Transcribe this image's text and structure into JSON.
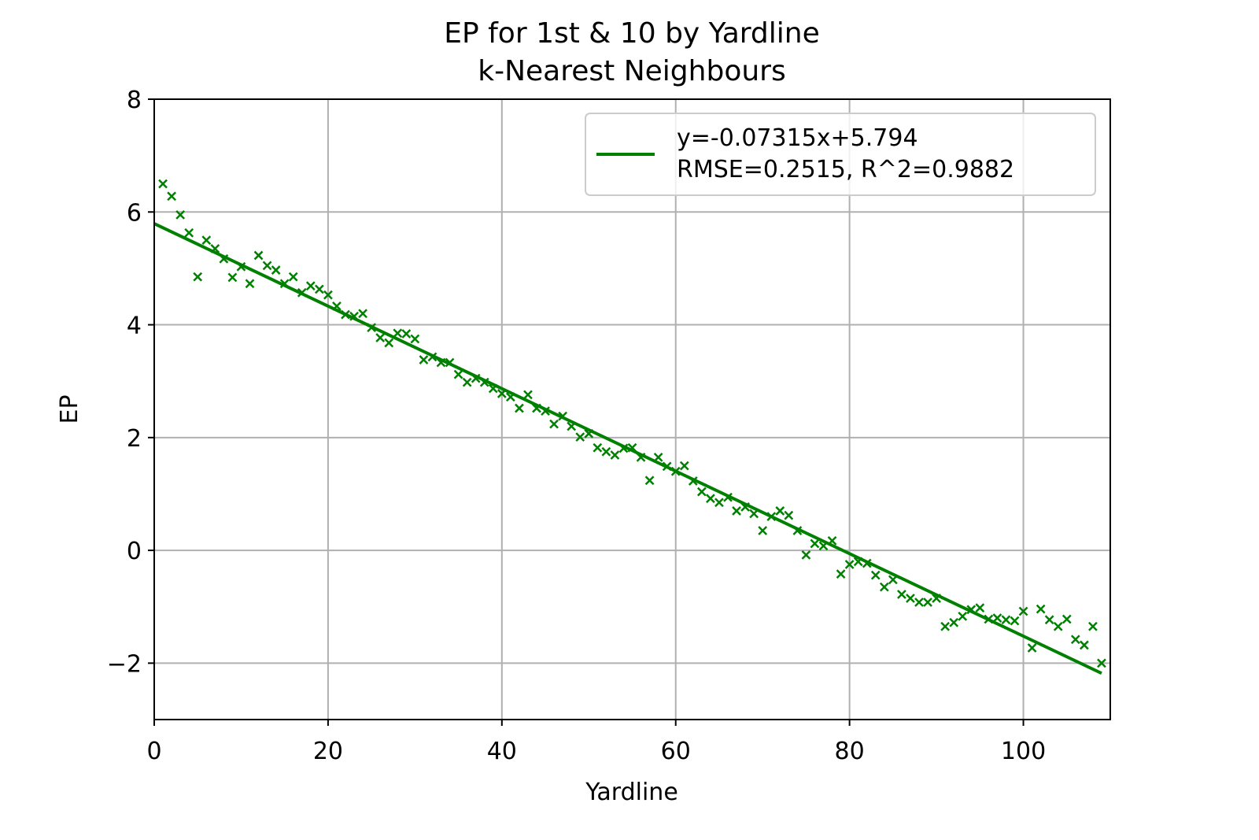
{
  "chart_data": {
    "type": "scatter",
    "title": "EP for 1st & 10 by Yardline",
    "subtitle": "k-Nearest Neighbours",
    "xlabel": "Yardline",
    "ylabel": "EP",
    "xlim": [
      0,
      110
    ],
    "ylim": [
      -3,
      8
    ],
    "xticks": [
      0,
      20,
      40,
      60,
      80,
      100
    ],
    "yticks": [
      -2,
      0,
      2,
      4,
      6,
      8
    ],
    "ytick_labels": [
      "−2",
      "0",
      "2",
      "4",
      "6",
      "8"
    ],
    "grid": true,
    "legend_position": "top-right",
    "color": "#008000",
    "marker": "x",
    "fit": {
      "slope": -0.07315,
      "intercept": 5.794,
      "legend_line1": "y=-0.07315x+5.794",
      "legend_line2": "RMSE=0.2515, R^2=0.9882"
    },
    "points": {
      "x": [
        1,
        2,
        3,
        4,
        5,
        6,
        7,
        8,
        9,
        10,
        11,
        12,
        13,
        14,
        15,
        16,
        17,
        18,
        19,
        20,
        21,
        22,
        23,
        24,
        25,
        26,
        27,
        28,
        29,
        30,
        31,
        32,
        33,
        34,
        35,
        36,
        37,
        38,
        39,
        40,
        41,
        42,
        43,
        44,
        45,
        46,
        47,
        48,
        49,
        50,
        51,
        52,
        53,
        54,
        55,
        56,
        57,
        58,
        59,
        60,
        61,
        62,
        63,
        64,
        65,
        66,
        67,
        68,
        69,
        70,
        71,
        72,
        73,
        74,
        75,
        76,
        77,
        78,
        79,
        80,
        81,
        82,
        83,
        84,
        85,
        86,
        87,
        88,
        89,
        90,
        91,
        92,
        93,
        94,
        95,
        96,
        97,
        98,
        99,
        100,
        101,
        102,
        103,
        104,
        105,
        106,
        107,
        108,
        109
      ],
      "y": [
        6.5,
        6.28,
        5.95,
        5.63,
        4.85,
        5.5,
        5.35,
        5.17,
        4.84,
        5.03,
        4.73,
        5.23,
        5.05,
        4.97,
        4.73,
        4.85,
        4.57,
        4.69,
        4.63,
        4.53,
        4.33,
        4.18,
        4.15,
        4.2,
        3.95,
        3.77,
        3.68,
        3.85,
        3.84,
        3.75,
        3.38,
        3.43,
        3.33,
        3.33,
        3.12,
        2.98,
        3.05,
        2.98,
        2.87,
        2.78,
        2.72,
        2.52,
        2.76,
        2.52,
        2.47,
        2.24,
        2.38,
        2.2,
        2.01,
        2.07,
        1.82,
        1.75,
        1.69,
        1.81,
        1.82,
        1.65,
        1.24,
        1.65,
        1.49,
        1.4,
        1.5,
        1.23,
        1.04,
        0.92,
        0.85,
        0.94,
        0.7,
        0.77,
        0.65,
        0.35,
        0.6,
        0.7,
        0.62,
        0.35,
        -0.08,
        0.12,
        0.08,
        0.17,
        -0.42,
        -0.25,
        -0.2,
        -0.23,
        -0.44,
        -0.65,
        -0.52,
        -0.78,
        -0.85,
        -0.92,
        -0.92,
        -0.85,
        -1.35,
        -1.28,
        -1.17,
        -1.05,
        -1.02,
        -1.22,
        -1.2,
        -1.23,
        -1.25,
        -1.08,
        -1.73,
        -1.04,
        -1.23,
        -1.35,
        -1.22,
        -1.58,
        -1.68,
        -1.35,
        -2.0
      ]
    }
  }
}
